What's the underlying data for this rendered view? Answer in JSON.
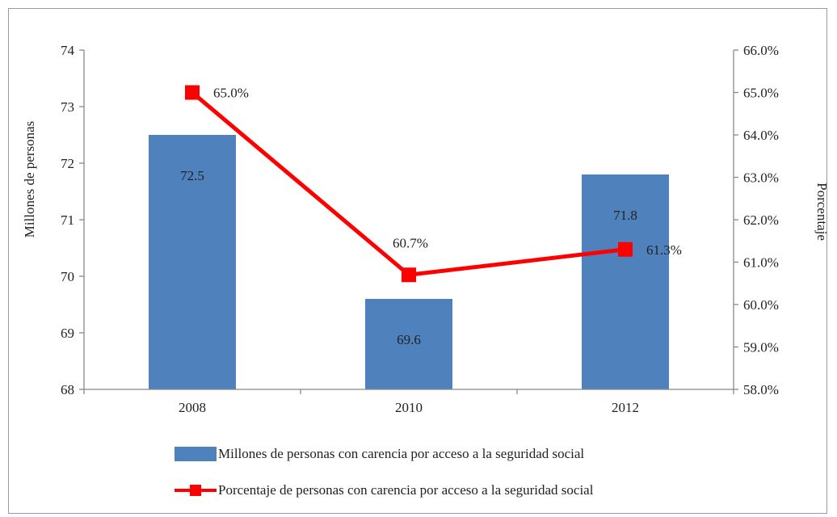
{
  "chart_data": {
    "type": "bar",
    "categories": [
      "2008",
      "2010",
      "2012"
    ],
    "series": [
      {
        "name": "Millones de personas con carencia por acceso a la seguridad social",
        "type": "bar",
        "axis": "left",
        "values": [
          72.5,
          69.6,
          71.8
        ],
        "labels": [
          "72.5",
          "69.6",
          "71.8"
        ],
        "color": "#4f81bd"
      },
      {
        "name": "Porcentaje de personas con carencia por acceso a la seguridad social",
        "type": "line",
        "axis": "right",
        "values": [
          65.0,
          60.7,
          61.3
        ],
        "labels": [
          "65.0%",
          "60.7%",
          "61.3%"
        ],
        "color": "#ff0000"
      }
    ],
    "y_left": {
      "label": "Millones de personas",
      "ylim": [
        68,
        74
      ],
      "ticks": [
        "68",
        "69",
        "70",
        "71",
        "72",
        "73",
        "74"
      ]
    },
    "y_right": {
      "label": "Porcentaje",
      "ylim": [
        58,
        66
      ],
      "ticks": [
        "58.0%",
        "59.0%",
        "60.0%",
        "61.0%",
        "62.0%",
        "63.0%",
        "64.0%",
        "65.0%",
        "66.0%"
      ]
    },
    "grid": false,
    "legend_position": "bottom"
  }
}
